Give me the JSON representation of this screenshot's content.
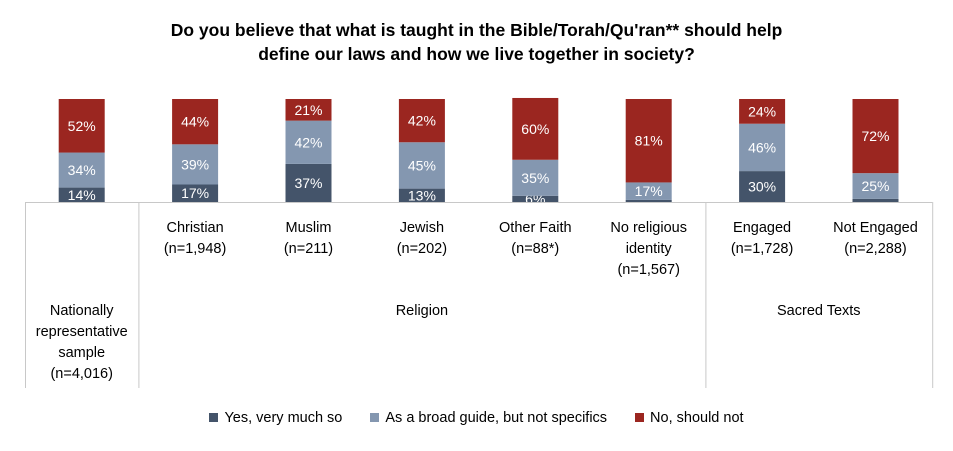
{
  "chart_data": {
    "type": "bar",
    "stacked": true,
    "title_line1": "Do you believe that what is taught in the Bible/Torah/Qu'ran** should help",
    "title_line2": "define our laws and how we live together in society?",
    "categories": [
      "Nationally representative sample (n=4,016)",
      "Christian (n=1,948)",
      "Muslim (n=211)",
      "Jewish (n=202)",
      "Other Faith (n=88*)",
      "No religious identity (n=1,567)",
      "Engaged (n=1,728)",
      "Not Engaged (n=2,288)"
    ],
    "category_lines": [
      [
        "Nationally",
        "representative",
        "sample",
        "(n=4,016)"
      ],
      [
        "Christian",
        "(n=1,948)"
      ],
      [
        "Muslim",
        "(n=211)"
      ],
      [
        "Jewish",
        "(n=202)"
      ],
      [
        "Other Faith",
        "(n=88*)"
      ],
      [
        "No religious",
        "identity",
        "(n=1,567)"
      ],
      [
        "Engaged",
        "(n=1,728)"
      ],
      [
        "Not Engaged",
        "(n=2,288)"
      ]
    ],
    "groups": [
      {
        "label": "Religion",
        "categories": [
          1,
          2,
          3,
          4,
          5
        ]
      },
      {
        "label": "Sacred Texts",
        "categories": [
          6,
          7
        ]
      }
    ],
    "series": [
      {
        "name": "Yes, very much so",
        "color": "#44546a",
        "values": [
          14,
          17,
          37,
          13,
          6,
          2,
          30,
          3
        ]
      },
      {
        "name": "As a broad guide, but not specifics",
        "color": "#8497b0",
        "values": [
          34,
          39,
          42,
          45,
          35,
          17,
          46,
          25
        ]
      },
      {
        "name": "No, should not",
        "color": "#9b2620",
        "values": [
          52,
          44,
          21,
          42,
          60,
          81,
          24,
          72
        ]
      }
    ],
    "value_labels": [
      [
        "14%",
        "17%",
        "37%",
        "13%",
        "6%",
        "",
        "30%",
        ""
      ],
      [
        "34%",
        "39%",
        "42%",
        "45%",
        "35%",
        "17%",
        "46%",
        "25%"
      ],
      [
        "52%",
        "44%",
        "21%",
        "42%",
        "60%",
        "81%",
        "24%",
        "72%"
      ]
    ],
    "ylim": [
      0,
      100
    ],
    "legend_position": "bottom",
    "grid": false
  }
}
